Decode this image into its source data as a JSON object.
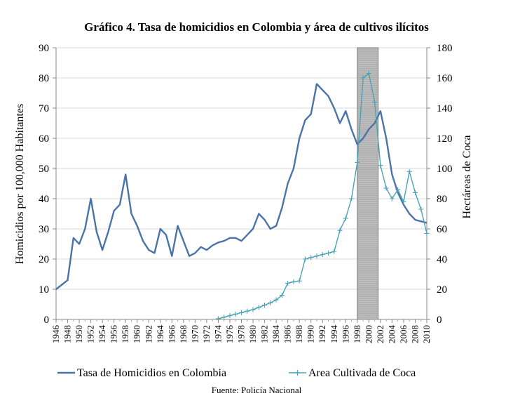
{
  "chart_data": {
    "type": "line",
    "title": "Gráfico 4. Tasa de homicidios en Colombia y área de cultivos ilícitos",
    "ylabel_left": "Homicidios por 100,000 Habitantes",
    "ylabel_right": "Hectáreas de Coca",
    "ylim_left": [
      0,
      90
    ],
    "ylim_right": [
      0,
      180
    ],
    "yticks_left": [
      "0",
      "10",
      "20",
      "30",
      "40",
      "50",
      "60",
      "70",
      "80",
      "90"
    ],
    "yticks_right": [
      "0",
      "20",
      "40",
      "60",
      "80",
      "100",
      "120",
      "140",
      "160",
      "180"
    ],
    "x_range": [
      1946,
      2010
    ],
    "xticks": [
      "1946",
      "1948",
      "1950",
      "1952",
      "1954",
      "1956",
      "1958",
      "1960",
      "1962",
      "1964",
      "1966",
      "1968",
      "1970",
      "1972",
      "1974",
      "1976",
      "1978",
      "1980",
      "1982",
      "1984",
      "1986",
      "1988",
      "1990",
      "1992",
      "1994",
      "1996",
      "1998",
      "2000",
      "2002",
      "2004",
      "2006",
      "2008",
      "2010"
    ],
    "shaded_period": [
      1998,
      2001.6
    ],
    "source": "Fuente: Policía Nacional",
    "series": [
      {
        "name": "Tasa de Homicidios en Colombia",
        "axis": "left",
        "color": "#4a74a8",
        "marker": "none",
        "x": [
          1946,
          1948,
          1949,
          1950,
          1951,
          1952,
          1953,
          1954,
          1955,
          1956,
          1957,
          1958,
          1959,
          1960,
          1961,
          1962,
          1963,
          1964,
          1965,
          1966,
          1967,
          1968,
          1969,
          1970,
          1971,
          1972,
          1973,
          1974,
          1975,
          1976,
          1977,
          1978,
          1979,
          1980,
          1981,
          1982,
          1983,
          1984,
          1985,
          1986,
          1987,
          1988,
          1989,
          1990,
          1991,
          1992,
          1993,
          1994,
          1995,
          1996,
          1997,
          1998,
          1999,
          2000,
          2001,
          2002,
          2003,
          2004,
          2005,
          2006,
          2007,
          2008,
          2009,
          2010
        ],
        "values": [
          10,
          13,
          27,
          25,
          30,
          40,
          29,
          23,
          29,
          36,
          38,
          48,
          35,
          31,
          26,
          23,
          22,
          30,
          28,
          21,
          31,
          26,
          21,
          22,
          24,
          23,
          24.5,
          25.5,
          26,
          27,
          27,
          26,
          28,
          30,
          35,
          33,
          30,
          31,
          37,
          45,
          50,
          60,
          66,
          68,
          78,
          76,
          74,
          70,
          65,
          69,
          63,
          58,
          60,
          63,
          65,
          69,
          60,
          48,
          42,
          38,
          35,
          33,
          32.5,
          32
        ]
      },
      {
        "name": "Area Cultivada de Coca",
        "axis": "right",
        "color": "#4aa3b8",
        "marker": "plus",
        "x": [
          1974,
          1975,
          1976,
          1977,
          1978,
          1979,
          1980,
          1981,
          1982,
          1983,
          1984,
          1985,
          1986,
          1987,
          1988,
          1989,
          1990,
          1991,
          1992,
          1993,
          1994,
          1995,
          1996,
          1997,
          1998,
          1999,
          2000,
          2001,
          2002,
          2003,
          2004,
          2005,
          2006,
          2007,
          2008,
          2009,
          2010
        ],
        "values": [
          0.5,
          1.5,
          2.5,
          3.5,
          4.5,
          5.5,
          6.5,
          8,
          9.5,
          11,
          13,
          16,
          24,
          25,
          25.5,
          40,
          41,
          42,
          43,
          44,
          45,
          59,
          67,
          80,
          104,
          160,
          163,
          144,
          102,
          87,
          80,
          86,
          78,
          98,
          84,
          73,
          57
        ]
      }
    ]
  }
}
